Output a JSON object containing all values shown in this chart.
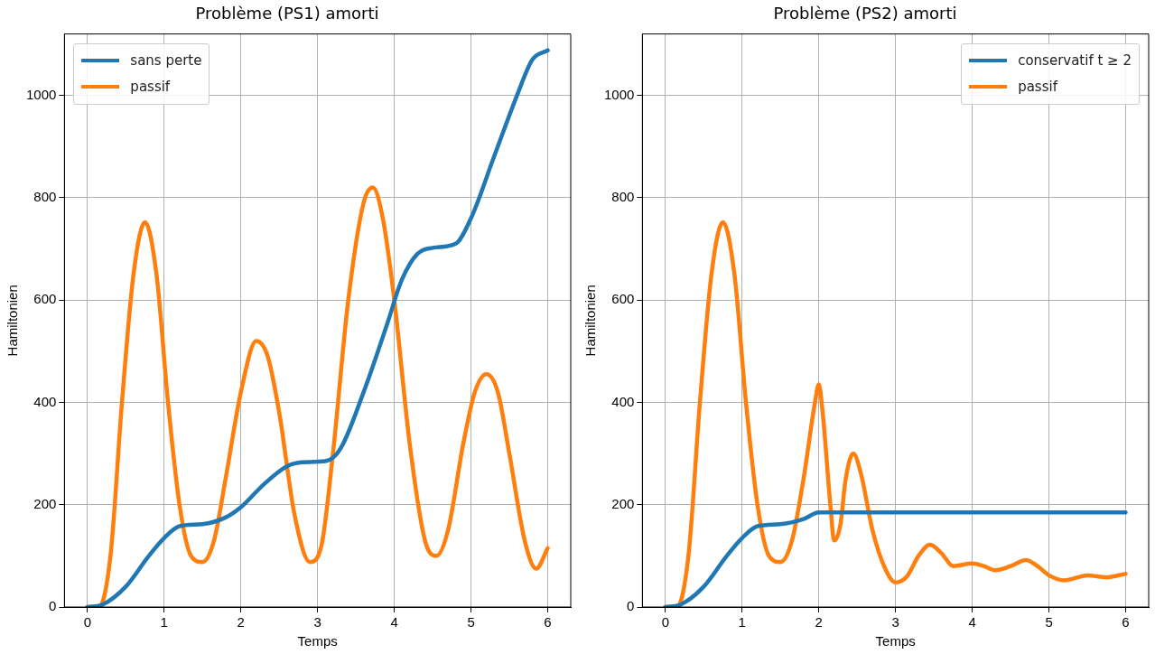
{
  "chart_data": [
    {
      "type": "line",
      "title": "Problème (PS1) amorti",
      "xlabel": "Temps",
      "ylabel": "Hamiltonien",
      "xlim": [
        -0.3,
        6.3
      ],
      "ylim": [
        0,
        1120
      ],
      "xticks": [
        0,
        1,
        2,
        3,
        4,
        5,
        6
      ],
      "yticks": [
        0,
        200,
        400,
        600,
        800,
        1000
      ],
      "grid": true,
      "legend": "top left",
      "marker": "none",
      "line_style": "solid",
      "series": [
        {
          "name": "sans perte",
          "color": "#1f77b4",
          "x": [
            0,
            0.2,
            0.5,
            0.8,
            1.0,
            1.2,
            1.5,
            1.8,
            2.0,
            2.3,
            2.6,
            2.8,
            3.1,
            3.3,
            3.6,
            3.9,
            4.1,
            4.3,
            4.5,
            4.8,
            5.0,
            5.3,
            5.6,
            5.8,
            6.0
          ],
          "values": [
            0,
            5,
            40,
            100,
            135,
            158,
            162,
            175,
            195,
            240,
            275,
            283,
            285,
            310,
            420,
            550,
            640,
            690,
            702,
            710,
            760,
            880,
            1000,
            1070,
            1088
          ]
        },
        {
          "name": "passif",
          "color": "#ff7f0e",
          "x": [
            0,
            0.15,
            0.3,
            0.45,
            0.6,
            0.75,
            0.9,
            1.05,
            1.2,
            1.35,
            1.5,
            1.65,
            1.8,
            2.0,
            2.2,
            2.35,
            2.5,
            2.7,
            2.9,
            3.05,
            3.2,
            3.4,
            3.6,
            3.72,
            3.85,
            4.0,
            4.2,
            4.4,
            4.55,
            4.7,
            4.9,
            5.05,
            5.2,
            5.35,
            5.5,
            5.7,
            5.85,
            6.0
          ],
          "values": [
            0,
            0,
            100,
            400,
            650,
            752,
            650,
            400,
            200,
            100,
            88,
            130,
            250,
            420,
            520,
            490,
            380,
            180,
            88,
            120,
            300,
            600,
            790,
            820,
            760,
            600,
            320,
            130,
            100,
            150,
            320,
            420,
            455,
            420,
            300,
            130,
            75,
            115
          ]
        }
      ]
    },
    {
      "type": "line",
      "title": "Problème (PS2) amorti",
      "xlabel": "Temps",
      "ylabel": "Hamiltonien",
      "xlim": [
        -0.3,
        6.3
      ],
      "ylim": [
        0,
        1120
      ],
      "xticks": [
        0,
        1,
        2,
        3,
        4,
        5,
        6
      ],
      "yticks": [
        0,
        200,
        400,
        600,
        800,
        1000
      ],
      "grid": true,
      "legend": "top right",
      "marker": "none",
      "line_style": "solid",
      "series": [
        {
          "name": "conservatif t ≥ 2",
          "color": "#1f77b4",
          "x": [
            0,
            0.2,
            0.5,
            0.8,
            1.0,
            1.2,
            1.5,
            1.8,
            2.0,
            2.1,
            3.0,
            4.0,
            5.0,
            6.0
          ],
          "values": [
            0,
            5,
            40,
            100,
            135,
            158,
            162,
            172,
            185,
            185,
            185,
            185,
            185,
            185
          ]
        },
        {
          "name": "passif",
          "color": "#ff7f0e",
          "x": [
            0,
            0.15,
            0.3,
            0.45,
            0.6,
            0.75,
            0.9,
            1.05,
            1.2,
            1.35,
            1.5,
            1.65,
            1.8,
            1.95,
            2.0,
            2.05,
            2.15,
            2.2,
            2.28,
            2.35,
            2.45,
            2.55,
            2.7,
            2.85,
            3.0,
            3.15,
            3.3,
            3.45,
            3.6,
            3.75,
            4.0,
            4.15,
            4.3,
            4.5,
            4.7,
            4.85,
            5.0,
            5.2,
            5.5,
            5.75,
            6.0
          ],
          "values": [
            0,
            0,
            100,
            400,
            650,
            752,
            650,
            400,
            200,
            100,
            88,
            130,
            250,
            400,
            435,
            380,
            200,
            130,
            160,
            250,
            300,
            260,
            150,
            80,
            48,
            60,
            100,
            122,
            105,
            80,
            85,
            80,
            72,
            80,
            92,
            80,
            62,
            52,
            62,
            58,
            65
          ]
        }
      ]
    }
  ]
}
